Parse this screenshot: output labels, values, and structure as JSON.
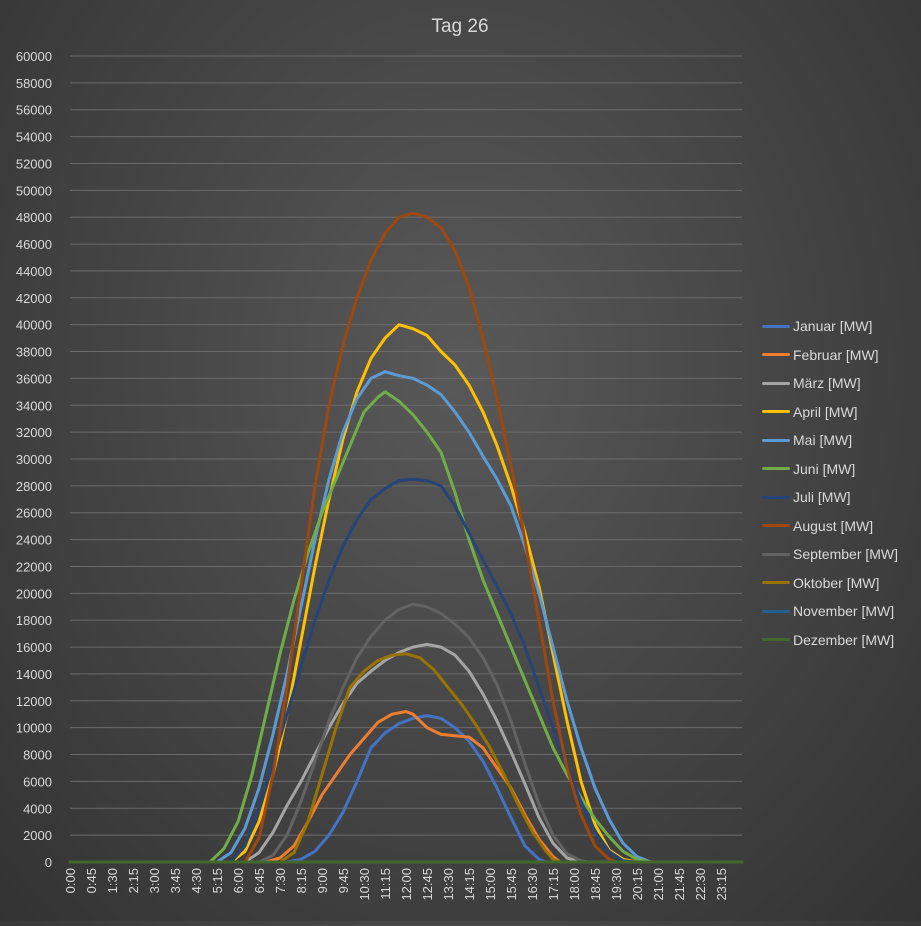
{
  "chart_data": {
    "type": "line",
    "title": "Tag 26",
    "xlabel": "",
    "ylabel": "",
    "ylim": [
      0,
      60000
    ],
    "y_ticks": [
      0,
      2000,
      4000,
      6000,
      8000,
      10000,
      12000,
      14000,
      16000,
      18000,
      20000,
      22000,
      24000,
      26000,
      28000,
      30000,
      32000,
      34000,
      36000,
      38000,
      40000,
      42000,
      44000,
      46000,
      48000,
      50000,
      52000,
      54000,
      56000,
      58000,
      60000
    ],
    "x_tick_labels": [
      "0:00",
      "0:45",
      "1:30",
      "2:15",
      "3:00",
      "3:45",
      "4:30",
      "5:15",
      "6:00",
      "6:45",
      "7:30",
      "8:15",
      "9:00",
      "9:45",
      "10:30",
      "11:15",
      "12:00",
      "12:45",
      "13:30",
      "14:15",
      "15:00",
      "15:45",
      "16:30",
      "17:15",
      "18:00",
      "18:45",
      "19:30",
      "20:15",
      "21:00",
      "21:45",
      "22:30",
      "23:15"
    ],
    "x_unit": "hour of day",
    "grid": true,
    "legend_position": "right",
    "series": [
      {
        "name": "Januar [MW]",
        "color": "#4472c4",
        "points": [
          [
            7.75,
            0
          ],
          [
            8.25,
            200
          ],
          [
            8.75,
            800
          ],
          [
            9.25,
            2000
          ],
          [
            9.75,
            3700
          ],
          [
            10.25,
            6000
          ],
          [
            10.75,
            8500
          ],
          [
            11.25,
            9600
          ],
          [
            11.75,
            10300
          ],
          [
            12.25,
            10700
          ],
          [
            12.75,
            10900
          ],
          [
            13.25,
            10700
          ],
          [
            13.75,
            10000
          ],
          [
            14.25,
            9000
          ],
          [
            14.75,
            7500
          ],
          [
            15.25,
            5500
          ],
          [
            15.75,
            3300
          ],
          [
            16.25,
            1200
          ],
          [
            16.75,
            200
          ],
          [
            17,
            0
          ]
        ]
      },
      {
        "name": "Februar [MW]",
        "color": "#ed7d31",
        "points": [
          [
            7,
            0
          ],
          [
            7.5,
            300
          ],
          [
            8,
            1200
          ],
          [
            8.5,
            3000
          ],
          [
            9,
            5000
          ],
          [
            9.5,
            6500
          ],
          [
            10,
            8000
          ],
          [
            10.5,
            9200
          ],
          [
            11,
            10400
          ],
          [
            11.5,
            11000
          ],
          [
            12,
            11200
          ],
          [
            12.25,
            11000
          ],
          [
            12.75,
            10000
          ],
          [
            13.25,
            9500
          ],
          [
            13.75,
            9400
          ],
          [
            14.25,
            9300
          ],
          [
            14.75,
            8500
          ],
          [
            15.25,
            7000
          ],
          [
            15.75,
            5500
          ],
          [
            16.25,
            3500
          ],
          [
            16.75,
            1700
          ],
          [
            17.25,
            400
          ],
          [
            17.5,
            0
          ]
        ]
      },
      {
        "name": "März [MW]",
        "color": "#a5a5a5",
        "points": [
          [
            6.25,
            0
          ],
          [
            6.75,
            700
          ],
          [
            7.25,
            2200
          ],
          [
            7.75,
            4200
          ],
          [
            8.25,
            6000
          ],
          [
            8.75,
            8000
          ],
          [
            9.25,
            10000
          ],
          [
            9.75,
            11800
          ],
          [
            10.25,
            13300
          ],
          [
            10.75,
            14200
          ],
          [
            11.25,
            15000
          ],
          [
            11.75,
            15600
          ],
          [
            12.25,
            16000
          ],
          [
            12.75,
            16200
          ],
          [
            13.25,
            16000
          ],
          [
            13.75,
            15400
          ],
          [
            14.25,
            14200
          ],
          [
            14.75,
            12500
          ],
          [
            15.25,
            10500
          ],
          [
            15.75,
            8200
          ],
          [
            16.25,
            5800
          ],
          [
            16.75,
            3300
          ],
          [
            17.25,
            1400
          ],
          [
            17.75,
            300
          ],
          [
            18.25,
            0
          ]
        ]
      },
      {
        "name": "April [MW]",
        "color": "#ffc000",
        "points": [
          [
            5.75,
            0
          ],
          [
            6.25,
            800
          ],
          [
            6.75,
            3000
          ],
          [
            7.25,
            6500
          ],
          [
            7.75,
            11000
          ],
          [
            8.25,
            16500
          ],
          [
            8.75,
            22000
          ],
          [
            9.25,
            27000
          ],
          [
            9.75,
            31500
          ],
          [
            10.25,
            35000
          ],
          [
            10.75,
            37500
          ],
          [
            11.25,
            39000
          ],
          [
            11.75,
            40000
          ],
          [
            12.25,
            39700
          ],
          [
            12.75,
            39200
          ],
          [
            13.25,
            38000
          ],
          [
            13.75,
            37000
          ],
          [
            14.25,
            35500
          ],
          [
            14.75,
            33500
          ],
          [
            15.25,
            31000
          ],
          [
            15.75,
            28000
          ],
          [
            16.25,
            24500
          ],
          [
            16.75,
            20500
          ],
          [
            17.25,
            15500
          ],
          [
            17.75,
            10500
          ],
          [
            18.25,
            6000
          ],
          [
            18.75,
            2800
          ],
          [
            19.25,
            900
          ],
          [
            19.75,
            200
          ],
          [
            20.25,
            0
          ]
        ]
      },
      {
        "name": "Mai [MW]",
        "color": "#5b9bd5",
        "points": [
          [
            5.25,
            0
          ],
          [
            5.75,
            700
          ],
          [
            6.25,
            2500
          ],
          [
            6.75,
            5500
          ],
          [
            7.25,
            9500
          ],
          [
            7.75,
            14000
          ],
          [
            8.25,
            19000
          ],
          [
            8.75,
            24000
          ],
          [
            9.25,
            28500
          ],
          [
            9.75,
            32000
          ],
          [
            10.25,
            34500
          ],
          [
            10.75,
            36000
          ],
          [
            11.25,
            36500
          ],
          [
            11.75,
            36200
          ],
          [
            12.25,
            36000
          ],
          [
            12.75,
            35500
          ],
          [
            13.25,
            34800
          ],
          [
            13.75,
            33500
          ],
          [
            14.25,
            32000
          ],
          [
            14.75,
            30200
          ],
          [
            15.25,
            28500
          ],
          [
            15.75,
            26500
          ],
          [
            16.25,
            23500
          ],
          [
            16.75,
            20000
          ],
          [
            17.25,
            16000
          ],
          [
            17.75,
            12000
          ],
          [
            18.25,
            8500
          ],
          [
            18.75,
            5500
          ],
          [
            19.25,
            3200
          ],
          [
            19.75,
            1400
          ],
          [
            20.25,
            400
          ],
          [
            20.75,
            0
          ]
        ]
      },
      {
        "name": "Juni [MW]",
        "color": "#70ad47",
        "points": [
          [
            5,
            0
          ],
          [
            5.5,
            1000
          ],
          [
            6,
            3000
          ],
          [
            6.5,
            6500
          ],
          [
            7,
            11000
          ],
          [
            7.5,
            15500
          ],
          [
            8,
            19500
          ],
          [
            8.5,
            23000
          ],
          [
            9,
            26000
          ],
          [
            9.5,
            28500
          ],
          [
            10,
            31000
          ],
          [
            10.5,
            33500
          ],
          [
            11,
            34600
          ],
          [
            11.25,
            35000
          ],
          [
            11.75,
            34300
          ],
          [
            12.25,
            33300
          ],
          [
            12.75,
            32000
          ],
          [
            13.25,
            30500
          ],
          [
            13.75,
            27500
          ],
          [
            14.25,
            24000
          ],
          [
            14.75,
            21000
          ],
          [
            15.25,
            18500
          ],
          [
            15.75,
            16000
          ],
          [
            16.25,
            13500
          ],
          [
            16.75,
            11000
          ],
          [
            17.25,
            8500
          ],
          [
            17.75,
            6500
          ],
          [
            18.25,
            4800
          ],
          [
            18.75,
            3200
          ],
          [
            19.25,
            1900
          ],
          [
            19.75,
            800
          ],
          [
            20.25,
            200
          ],
          [
            20.75,
            0
          ]
        ]
      },
      {
        "name": "Juli [MW]",
        "color": "#264478",
        "points": [
          [
            5.75,
            0
          ],
          [
            6.25,
            1200
          ],
          [
            6.75,
            4000
          ],
          [
            7.25,
            7500
          ],
          [
            7.75,
            11000
          ],
          [
            8.25,
            14500
          ],
          [
            8.75,
            18000
          ],
          [
            9.25,
            21000
          ],
          [
            9.75,
            23500
          ],
          [
            10.25,
            25500
          ],
          [
            10.75,
            27000
          ],
          [
            11.25,
            27800
          ],
          [
            11.75,
            28400
          ],
          [
            12.25,
            28500
          ],
          [
            12.75,
            28400
          ],
          [
            13.25,
            28000
          ],
          [
            13.75,
            26500
          ],
          [
            14.25,
            24500
          ],
          [
            14.75,
            22500
          ],
          [
            15.25,
            20500
          ],
          [
            15.75,
            18500
          ],
          [
            16.25,
            16000
          ],
          [
            16.75,
            13000
          ],
          [
            17.25,
            10000
          ],
          [
            17.75,
            7000
          ],
          [
            18.25,
            4500
          ],
          [
            18.75,
            2300
          ],
          [
            19.25,
            800
          ],
          [
            19.75,
            100
          ],
          [
            20.25,
            0
          ]
        ]
      },
      {
        "name": "August [MW]",
        "color": "#9e480e",
        "points": [
          [
            6.25,
            0
          ],
          [
            6.75,
            1800
          ],
          [
            7.25,
            6500
          ],
          [
            7.75,
            13000
          ],
          [
            8.25,
            20500
          ],
          [
            8.75,
            28000
          ],
          [
            9.25,
            34000
          ],
          [
            9.75,
            38500
          ],
          [
            10.25,
            42000
          ],
          [
            10.75,
            44800
          ],
          [
            11.25,
            46800
          ],
          [
            11.75,
            48000
          ],
          [
            12.25,
            48300
          ],
          [
            12.75,
            48000
          ],
          [
            13.25,
            47200
          ],
          [
            13.75,
            45500
          ],
          [
            14.25,
            42800
          ],
          [
            14.75,
            39000
          ],
          [
            15.25,
            34500
          ],
          [
            15.75,
            29500
          ],
          [
            16.25,
            24000
          ],
          [
            16.75,
            18000
          ],
          [
            17.25,
            12000
          ],
          [
            17.75,
            7000
          ],
          [
            18.25,
            3500
          ],
          [
            18.75,
            1200
          ],
          [
            19.25,
            200
          ],
          [
            19.5,
            0
          ]
        ]
      },
      {
        "name": "September [MW]",
        "color": "#636363",
        "points": [
          [
            6.75,
            0
          ],
          [
            7.25,
            500
          ],
          [
            7.75,
            2000
          ],
          [
            8.25,
            4500
          ],
          [
            8.75,
            7500
          ],
          [
            9.25,
            10500
          ],
          [
            9.75,
            13000
          ],
          [
            10.25,
            15200
          ],
          [
            10.75,
            16800
          ],
          [
            11.25,
            18000
          ],
          [
            11.75,
            18800
          ],
          [
            12.25,
            19200
          ],
          [
            12.75,
            19000
          ],
          [
            13.25,
            18500
          ],
          [
            13.75,
            17700
          ],
          [
            14.25,
            16700
          ],
          [
            14.75,
            15200
          ],
          [
            15.25,
            13200
          ],
          [
            15.75,
            10500
          ],
          [
            16.25,
            7300
          ],
          [
            16.75,
            4300
          ],
          [
            17.25,
            2000
          ],
          [
            17.75,
            600
          ],
          [
            18.25,
            100
          ],
          [
            18.5,
            0
          ]
        ]
      },
      {
        "name": "Oktober [MW]",
        "color": "#997300",
        "points": [
          [
            7.5,
            0
          ],
          [
            8,
            700
          ],
          [
            8.5,
            3000
          ],
          [
            9,
            6500
          ],
          [
            9.5,
            10000
          ],
          [
            10,
            13000
          ],
          [
            10.5,
            14200
          ],
          [
            11,
            15000
          ],
          [
            11.5,
            15400
          ],
          [
            12,
            15500
          ],
          [
            12.5,
            15200
          ],
          [
            13,
            14300
          ],
          [
            13.5,
            13000
          ],
          [
            14,
            11700
          ],
          [
            14.5,
            10200
          ],
          [
            15,
            8500
          ],
          [
            15.5,
            6500
          ],
          [
            16,
            4300
          ],
          [
            16.5,
            2300
          ],
          [
            17,
            800
          ],
          [
            17.25,
            200
          ],
          [
            17.5,
            0
          ]
        ]
      },
      {
        "name": "November [MW]",
        "color": "#255e91",
        "points": [
          [
            0,
            0
          ],
          [
            24,
            0
          ]
        ]
      },
      {
        "name": "Dezember [MW]",
        "color": "#43682b",
        "points": [
          [
            0,
            0
          ],
          [
            24,
            0
          ]
        ]
      }
    ]
  }
}
